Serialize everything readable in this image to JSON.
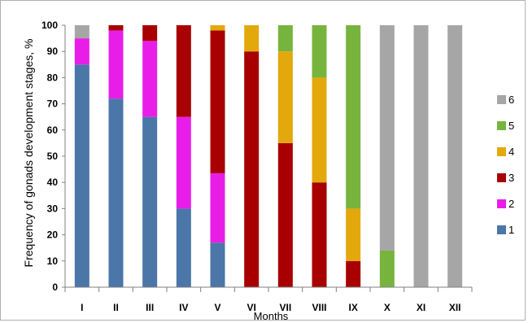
{
  "chart_data": {
    "type": "bar",
    "stacked": true,
    "xlabel": "Months",
    "ylabel": "Frequency of gonads development stages, %",
    "ylim": [
      0,
      100
    ],
    "yticks": [
      0,
      10,
      20,
      30,
      40,
      50,
      60,
      70,
      80,
      90,
      100
    ],
    "categories": [
      "I",
      "II",
      "III",
      "IV",
      "V",
      "VI",
      "VII",
      "VIII",
      "IX",
      "X",
      "XI",
      "XII"
    ],
    "legend_position": "right",
    "series": [
      {
        "name": "1",
        "color": "#4a76a8",
        "values": [
          85,
          72,
          65,
          30,
          17,
          0,
          0,
          0,
          0,
          0,
          0,
          0
        ]
      },
      {
        "name": "2",
        "color": "#e81ee8",
        "values": [
          10,
          26,
          29,
          35,
          26.5,
          0,
          0,
          0,
          0,
          0,
          0,
          0
        ]
      },
      {
        "name": "3",
        "color": "#a80000",
        "values": [
          0,
          2,
          6,
          35,
          54.5,
          90,
          55,
          40,
          10,
          0,
          0,
          0
        ]
      },
      {
        "name": "4",
        "color": "#e3a80c",
        "values": [
          0,
          0,
          0,
          0,
          2,
          10,
          35,
          40,
          20,
          0,
          0,
          0
        ]
      },
      {
        "name": "5",
        "color": "#77b43e",
        "values": [
          0,
          0,
          0,
          0,
          0,
          0,
          10,
          20,
          70,
          14,
          0,
          0
        ]
      },
      {
        "name": "6",
        "color": "#a6a6a6",
        "values": [
          5,
          0,
          0,
          0,
          0,
          0,
          0,
          0,
          0,
          86,
          100,
          100
        ]
      }
    ]
  }
}
